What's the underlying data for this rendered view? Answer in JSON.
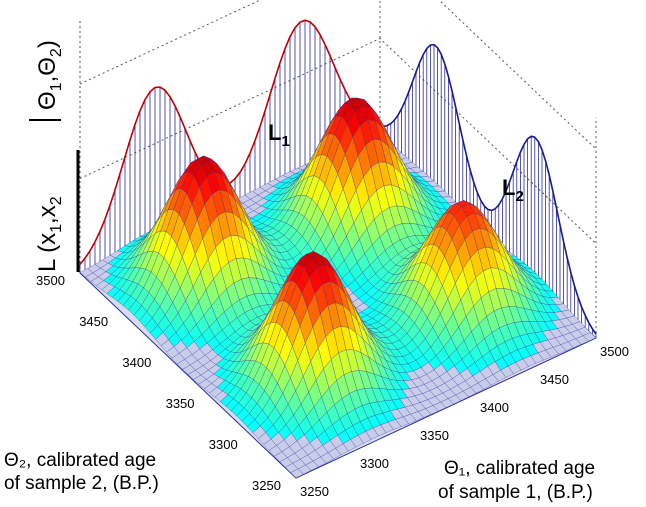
{
  "chart_data": {
    "type": "surface",
    "title": "",
    "z_label": {
      "main": "L (x",
      "sub1": "1",
      "comma": ",x",
      "sub2": "2",
      "bar_part": "Θ",
      "sub3": "1",
      "comma2": ",Θ",
      "sub4": "2",
      "close": ")"
    },
    "x_axis": {
      "label_line1": "Θ₁,  calibrated age",
      "label_line2": "of sample 1,  (B.P.)",
      "ticks": [
        3250,
        3300,
        3350,
        3400,
        3450,
        3500
      ],
      "range": [
        3250,
        3500
      ]
    },
    "y_axis": {
      "label_line1": "Θ₂,  calibrated age",
      "label_line2": "of sample 2,  (B.P.)",
      "ticks": [
        3250,
        3300,
        3350,
        3400,
        3450,
        3500
      ],
      "range": [
        3250,
        3500
      ]
    },
    "marginals": [
      {
        "name": "L",
        "sub": "1",
        "color": "#1a1a8c"
      },
      {
        "name": "L",
        "sub": "2",
        "color": "#c00000"
      }
    ],
    "peaks": [
      {
        "x": 3310,
        "y": 3440,
        "height": 1.0
      },
      {
        "x": 3430,
        "y": 3430,
        "height": 1.0
      },
      {
        "x": 3315,
        "y": 3320,
        "height": 1.0
      },
      {
        "x": 3440,
        "y": 3320,
        "height": 0.85
      }
    ],
    "grid": true,
    "colormap": "jet",
    "mesh_color": "#2b2b9a"
  }
}
